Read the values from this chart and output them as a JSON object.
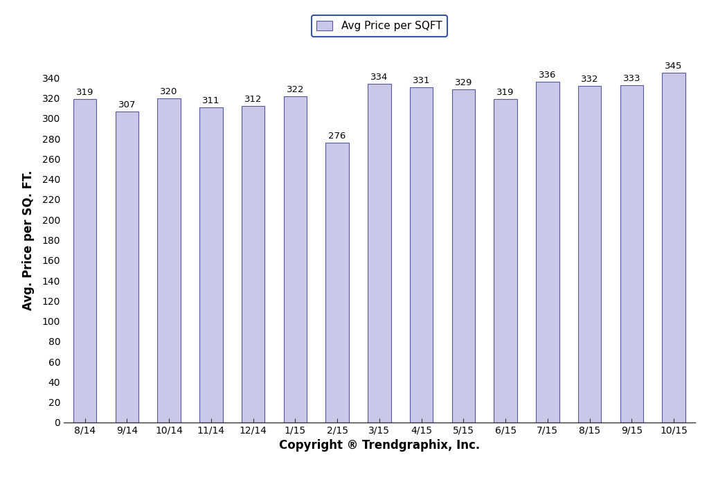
{
  "categories": [
    "8/14",
    "9/14",
    "10/14",
    "11/14",
    "12/14",
    "1/15",
    "2/15",
    "3/15",
    "4/15",
    "5/15",
    "6/15",
    "7/15",
    "8/15",
    "9/15",
    "10/15"
  ],
  "values": [
    319,
    307,
    320,
    311,
    312,
    322,
    276,
    334,
    331,
    329,
    319,
    336,
    332,
    333,
    345
  ],
  "bar_color": "#c8c8e8",
  "bar_edgecolor": "#5555aa",
  "ylabel": "Avg. Price per SQ. FT.",
  "xlabel": "Copyright ® Trendgraphix, Inc.",
  "ylim": [
    0,
    360
  ],
  "yticks": [
    0,
    20,
    40,
    60,
    80,
    100,
    120,
    140,
    160,
    180,
    200,
    220,
    240,
    260,
    280,
    300,
    320,
    340
  ],
  "legend_label": "Avg Price per SQFT",
  "legend_facecolor": "#c8c8e8",
  "legend_edgecolor": "#3355aa",
  "bar_label_fontsize": 9.5,
  "axis_label_fontsize": 12,
  "tick_fontsize": 10,
  "ylabel_fontsize": 12,
  "background_color": "#ffffff",
  "spine_color": "#333333",
  "bar_width": 0.55
}
